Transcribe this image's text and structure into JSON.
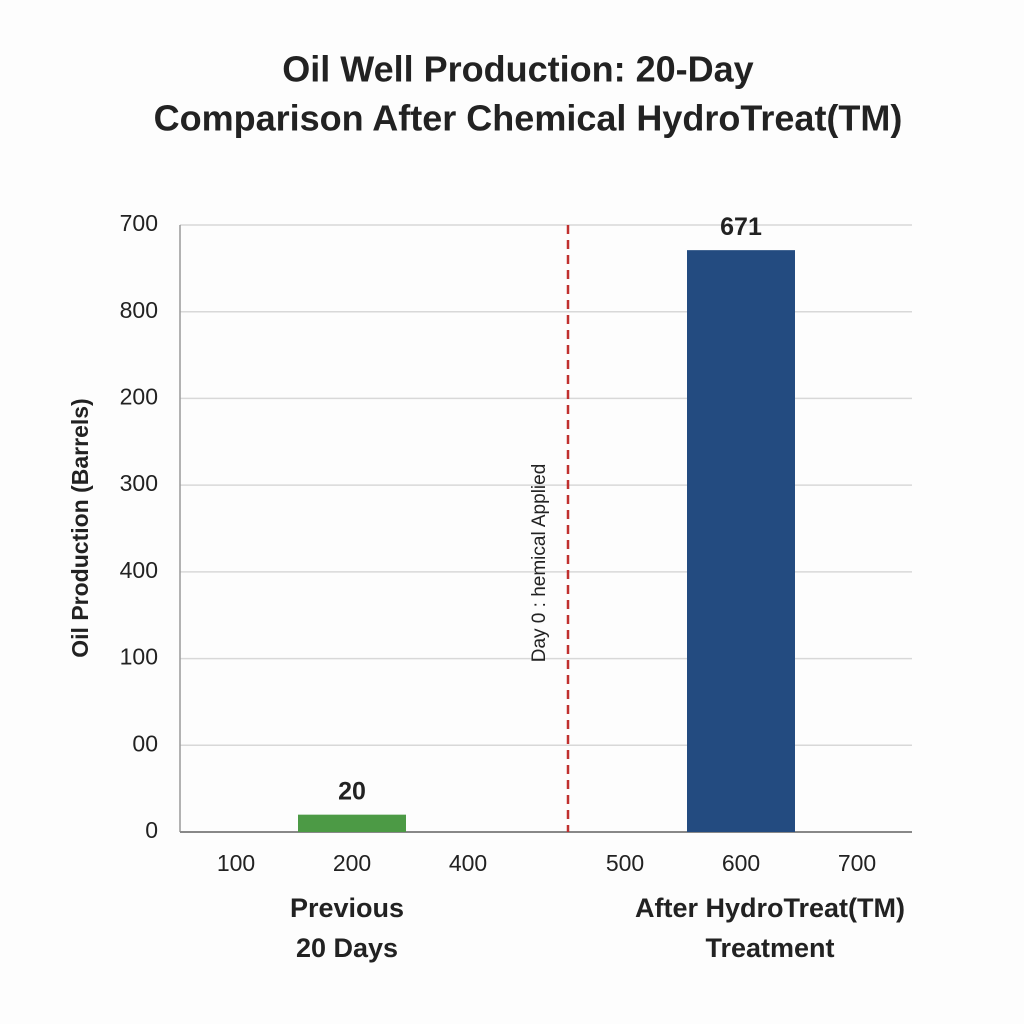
{
  "chart_data": {
    "type": "bar",
    "title": [
      "Oil Well Production: 20-Day",
      "Comparison After Chemical HydroTreat(TM)"
    ],
    "y_label": "Oil Production (Barrels)",
    "categories": [
      "Previous\n20 Days",
      "After HydroTreat(TM)\nTreatment"
    ],
    "values": [
      20,
      671
    ],
    "colors": [
      "#4c9a45",
      "#234b80"
    ],
    "x_tick_labels": [
      "100",
      "200",
      "400",
      "500",
      "600",
      "700"
    ],
    "ylim": [
      0,
      700
    ],
    "yticks": [
      0,
      {
        "value": 100,
        "label": "00"
      },
      {
        "value": 200,
        "label": "100"
      },
      {
        "value": 300,
        "label": "400"
      },
      {
        "value": 400,
        "label": "300"
      },
      {
        "value": 500,
        "label": "200"
      },
      {
        "value": 600,
        "label": "800"
      },
      700
    ],
    "grid": true,
    "annotation": "Day 0 : hemical Applied",
    "annotation_color": "#c0302f"
  }
}
